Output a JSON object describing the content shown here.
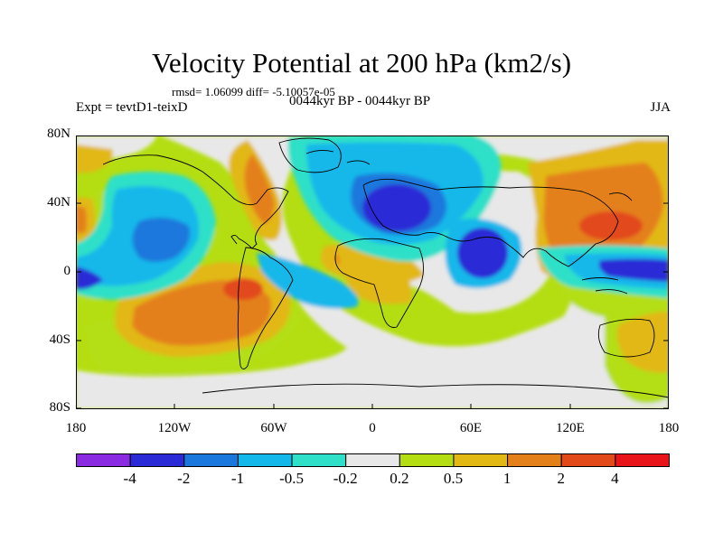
{
  "title": "Velocity Potential at 200 hPa (km2/s)",
  "stats_line": "rmsd= 1.06099 diff= -5.10057e-05",
  "experiment": "Expt = tevtD1-teixD",
  "period": "0044kyr BP - 0044kyr BP",
  "season": "JJA",
  "lat_labels": [
    "80N",
    "40N",
    "0",
    "40S",
    "80S"
  ],
  "lon_labels": [
    "180",
    "120W",
    "60W",
    "0",
    "60E",
    "120E",
    "180"
  ],
  "colorbar": {
    "colors": [
      "#8a2be2",
      "#2a2ad6",
      "#1a78dc",
      "#12b8ea",
      "#2fe0c8",
      "#e8e8e8",
      "#b4de12",
      "#e2b812",
      "#e4801a",
      "#e24a1a",
      "#e8141a"
    ],
    "labels": [
      "-4",
      "-2",
      "-1",
      "-0.5",
      "-0.2",
      "0.2",
      "0.5",
      "1",
      "2",
      "4"
    ]
  }
}
